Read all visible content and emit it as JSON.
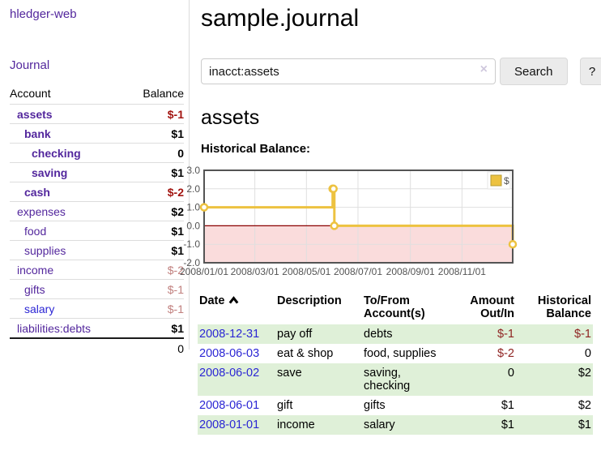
{
  "sidebar": {
    "app_title": "hledger-web",
    "nav": {
      "journal_label": "Journal"
    },
    "accounts_table": {
      "headers": {
        "account": "Account",
        "balance": "Balance"
      },
      "rows": [
        {
          "name": "assets",
          "depth": 1,
          "bold": true,
          "balance": "$-1",
          "neg": "strong"
        },
        {
          "name": "bank",
          "depth": 2,
          "bold": true,
          "balance": "$1"
        },
        {
          "name": "checking",
          "depth": 3,
          "bold": true,
          "balance": "0"
        },
        {
          "name": "saving",
          "depth": 3,
          "bold": true,
          "balance": "$1"
        },
        {
          "name": "cash",
          "depth": 2,
          "bold": true,
          "balance": "$-2",
          "neg": "strong"
        },
        {
          "name": "expenses",
          "depth": 1,
          "bold": false,
          "balance": "$2"
        },
        {
          "name": "food",
          "depth": 2,
          "bold": false,
          "balance": "$1"
        },
        {
          "name": "supplies",
          "depth": 2,
          "bold": false,
          "balance": "$1"
        },
        {
          "name": "income",
          "depth": 1,
          "bold": false,
          "balance": "$-2",
          "neg": "soft"
        },
        {
          "name": "gifts",
          "depth": 2,
          "bold": false,
          "balance": "$-1",
          "neg": "soft"
        },
        {
          "name": "salary",
          "depth": 2,
          "bold": false,
          "balance": "$-1",
          "neg": "soft",
          "link_color": "blue"
        },
        {
          "name": "liabilities:debts",
          "depth": 1,
          "bold": false,
          "balance": "$1"
        }
      ],
      "total": "0"
    }
  },
  "main": {
    "title": "sample.journal",
    "search": {
      "value": "inacct:assets",
      "clear_icon": "×",
      "button_label": "Search",
      "help_label": "?"
    },
    "account_heading": "assets",
    "chart_label": "Historical Balance:",
    "register_table": {
      "headers": {
        "date": "Date",
        "description": "Description",
        "account": "To/From Account(s)",
        "amount": "Amount Out/In",
        "balance": "Historical Balance"
      },
      "sort": {
        "column": "date",
        "direction": "ascending"
      },
      "rows": [
        {
          "date": "2008-12-31",
          "description": "pay off",
          "accounts": "debts",
          "amount": "$-1",
          "balance": "$-1"
        },
        {
          "date": "2008-06-03",
          "description": "eat & shop",
          "accounts": "food, supplies",
          "amount": "$-2",
          "balance": "0"
        },
        {
          "date": "2008-06-02",
          "description": "save",
          "accounts": "saving, checking",
          "amount": "0",
          "balance": "$2"
        },
        {
          "date": "2008-06-01",
          "description": "gift",
          "accounts": "gifts",
          "amount": "$1",
          "balance": "$2"
        },
        {
          "date": "2008-01-01",
          "description": "income",
          "accounts": "salary",
          "amount": "$1",
          "balance": "$1"
        }
      ]
    }
  },
  "chart_data": {
    "type": "line",
    "title": "Historical Balance:",
    "step": true,
    "series": [
      {
        "name": "$",
        "color": "#edc240",
        "points": [
          [
            "2008-01-01",
            1
          ],
          [
            "2008-06-01",
            2
          ],
          [
            "2008-06-02",
            2
          ],
          [
            "2008-06-03",
            0
          ],
          [
            "2008-12-31",
            -1
          ]
        ]
      }
    ],
    "xlim": [
      "2008-01-01",
      "2008-12-31"
    ],
    "ylim": [
      -2,
      3
    ],
    "x_ticks": [
      "2008/01/01",
      "2008/03/01",
      "2008/05/01",
      "2008/07/01",
      "2008/09/01",
      "2008/11/01"
    ],
    "y_ticks": [
      3.0,
      2.0,
      1.0,
      0.0,
      -1.0,
      -2.0
    ],
    "grid": true,
    "legend_position": "top-right",
    "colors": {
      "grid": "#dfdfdf",
      "border": "#545454",
      "axis_text": "#545454",
      "zero_line": "#8b0000",
      "negative_region": "#fadcdc",
      "marker_fill": "#ffffff"
    }
  }
}
